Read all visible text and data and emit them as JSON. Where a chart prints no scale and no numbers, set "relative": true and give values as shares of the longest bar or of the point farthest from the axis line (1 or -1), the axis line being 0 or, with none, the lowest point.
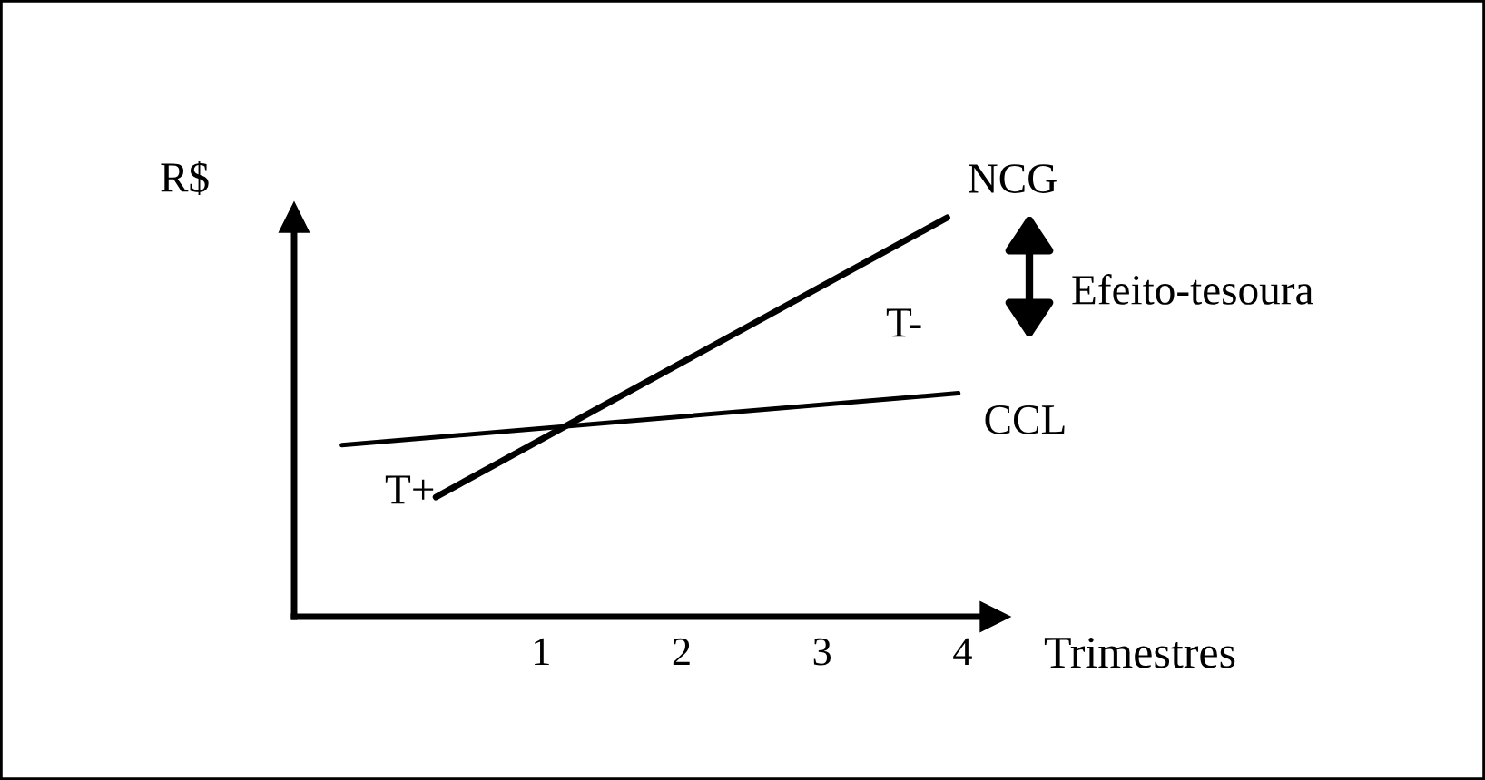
{
  "chart_data": {
    "type": "line",
    "relative": true,
    "xlabel": "Trimestres",
    "ylabel": "R$",
    "xlim": [
      -0.76,
      4.23
    ],
    "xticks": [
      1,
      2,
      3,
      4
    ],
    "series": [
      {
        "name": "NCG",
        "color": "#000000",
        "x": [
          0.25,
          3.89
        ],
        "values": [
          0.3,
          1
        ]
      },
      {
        "name": "CCL",
        "color": "#000000",
        "x": [
          -0.42,
          3.97
        ],
        "values": [
          0.43,
          0.56
        ]
      }
    ],
    "annotations": [
      "T+",
      "T-",
      "Efeito-tesoura"
    ],
    "grid": false,
    "legend": false,
    "marker": "none",
    "line_style": "solid"
  }
}
